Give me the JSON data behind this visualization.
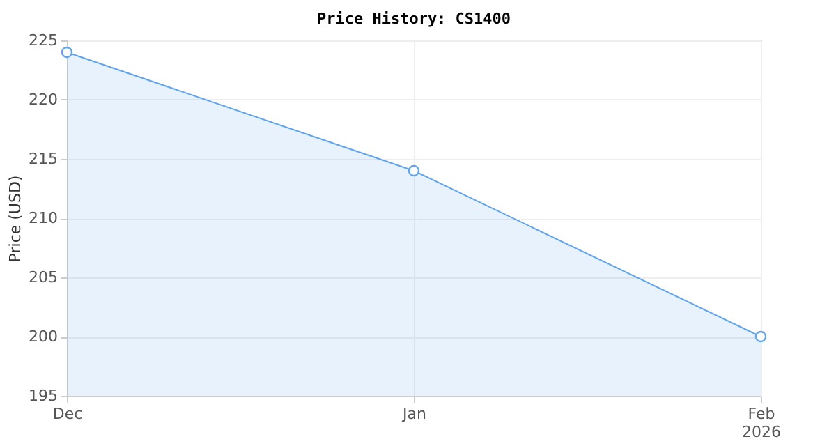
{
  "chart_data": {
    "type": "area",
    "title": "Price History: CS1400",
    "ylabel": "Price (USD)",
    "x": [
      "2025-12-01",
      "2026-01-01",
      "2026-02-01"
    ],
    "series": [
      {
        "color": "#5ea4f0",
        "values": [
          224,
          214,
          200
        ]
      }
    ],
    "xlim": [
      "2025-12-01",
      "2026-02-01"
    ],
    "xticks": [
      {
        "value": "2025-12-01",
        "label": "Dec"
      },
      {
        "value": "2026-01-01",
        "label": "Jan"
      },
      {
        "value": "2026-02-01",
        "label": "Feb\n2026"
      }
    ],
    "ylim": [
      195,
      225
    ],
    "yticks": [
      195,
      200,
      205,
      210,
      215,
      220,
      225
    ],
    "grid": true,
    "marker": "circle",
    "line_style": "solid"
  }
}
